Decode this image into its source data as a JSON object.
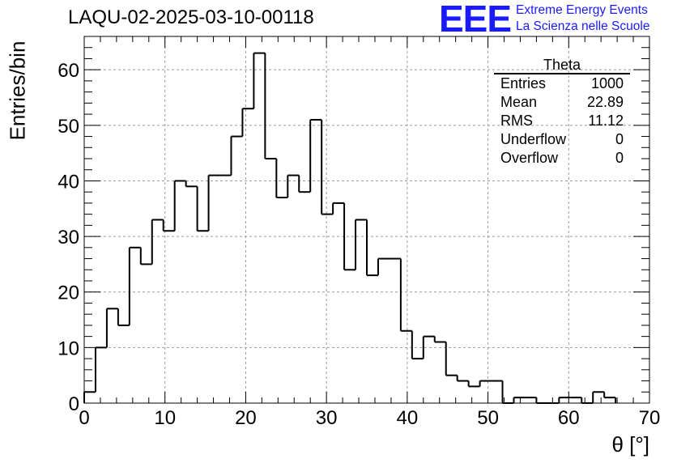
{
  "chart_data": {
    "type": "histogram",
    "title": "LAQU-02-2025-03-10-00118",
    "xlabel": "θ [°]",
    "ylabel": "Entries/bin",
    "xlim": [
      0,
      70
    ],
    "ylim": [
      0,
      66
    ],
    "x_ticks": [
      0,
      10,
      20,
      30,
      40,
      50,
      60,
      70
    ],
    "y_ticks": [
      0,
      10,
      20,
      30,
      40,
      50,
      60
    ],
    "grid": true,
    "bin_width": 1.4,
    "bin_start": 0,
    "values": [
      2,
      10,
      17,
      14,
      28,
      25,
      33,
      31,
      40,
      39,
      31,
      41,
      41,
      48,
      53,
      63,
      44,
      37,
      41,
      38,
      51,
      34,
      36,
      24,
      33,
      23,
      26,
      26,
      13,
      8,
      12,
      11,
      5,
      4,
      3,
      4,
      4,
      0,
      1,
      1,
      0,
      0,
      1,
      1,
      0,
      2,
      1
    ]
  },
  "stats_box": {
    "title": "Theta",
    "rows": [
      {
        "label": "Entries",
        "value": "1000"
      },
      {
        "label": "Mean",
        "value": "22.89"
      },
      {
        "label": "RMS",
        "value": "11.12"
      },
      {
        "label": "Underflow",
        "value": "0"
      },
      {
        "label": "Overflow",
        "value": "0"
      }
    ]
  },
  "logo": {
    "mark": "EEE",
    "line1": "Extreme Energy Events",
    "line2": "La Scienza nelle Scuole",
    "color": "#1a1aff"
  }
}
